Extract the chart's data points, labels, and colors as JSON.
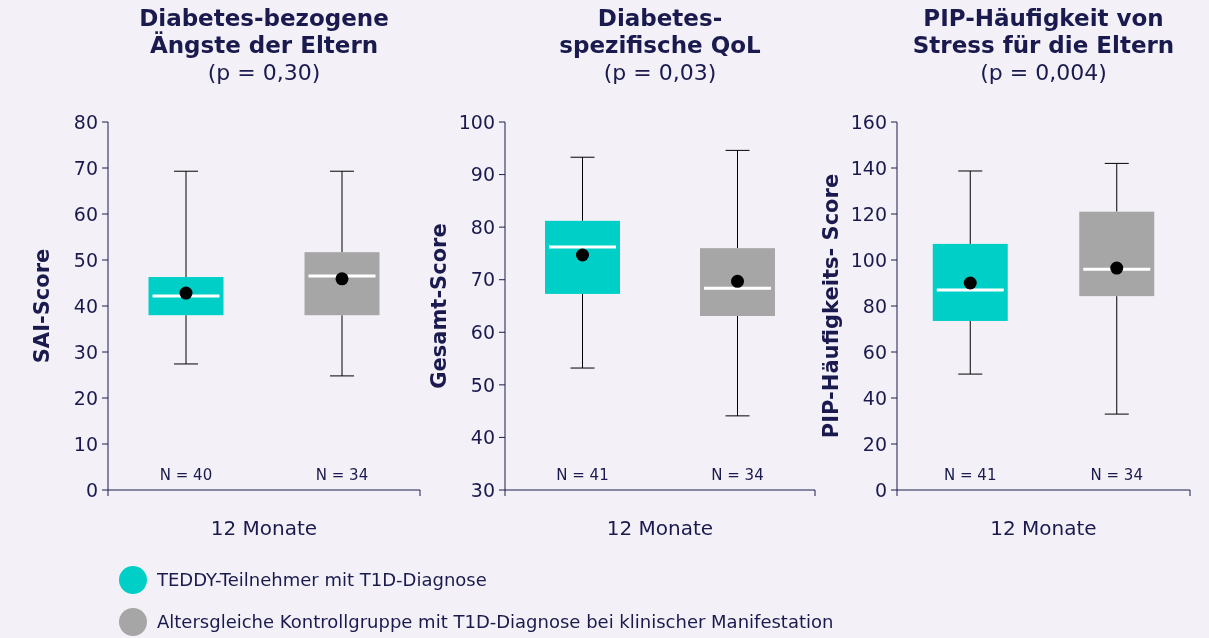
{
  "chart_data": [
    {
      "type": "box",
      "title": "Diabetes-bezogene\nÄngste der Eltern",
      "subtitle": "(p = 0,30)",
      "ylabel": "SAI-Score",
      "xlabel": "12 Monate",
      "categories": [
        null,
        null
      ],
      "ylim": [
        0,
        80
      ],
      "yticks": [
        0,
        10,
        20,
        30,
        40,
        50,
        60,
        70,
        80
      ],
      "legend": "bottom",
      "annotations": [
        "N = 40",
        "N = 34"
      ],
      "series": [
        {
          "name": "TEDDY-Teilnehmer mit T1D-Diagnose",
          "color": "#00cfc8",
          "boxes": [
            {
              "low": 27.4,
              "q1": 38,
              "median": 42.2,
              "q3": 46.3,
              "high": 69.3,
              "mean": 42.8
            },
            null
          ]
        },
        {
          "name": "Altersgleiche Kontrollgruppe mit T1D-Diagnose bei klinischer Manifestation",
          "color": "#a6a6a6",
          "boxes": [
            null,
            {
              "low": 24.8,
              "q1": 38,
              "median": 46.5,
              "q3": 51.7,
              "high": 69.3,
              "mean": 45.9
            }
          ]
        }
      ]
    },
    {
      "type": "box",
      "title": "Diabetes-\nspezifische QoL",
      "subtitle": "(p = 0,03)",
      "ylabel": "Gesamt-Score",
      "xlabel": "12 Monate",
      "categories": [
        null,
        null
      ],
      "ylim": [
        30,
        100
      ],
      "yticks": [
        30,
        40,
        50,
        60,
        70,
        80,
        90,
        100
      ],
      "annotations": [
        "N = 41",
        "N = 34"
      ],
      "series": [
        {
          "color": "#00cfc8",
          "boxes": [
            {
              "low": 53.2,
              "q1": 67.3,
              "median": 76.2,
              "q3": 81.2,
              "high": 93.3,
              "mean": 74.7
            },
            null
          ]
        },
        {
          "color": "#a6a6a6",
          "boxes": [
            null,
            {
              "low": 44.1,
              "q1": 63.1,
              "median": 68.4,
              "q3": 76,
              "high": 94.6,
              "mean": 69.7
            }
          ]
        }
      ]
    },
    {
      "type": "box",
      "title": "PIP-Häufigkeit von\nStress für die Eltern",
      "subtitle": "(p = 0,004)",
      "ylabel": "PIP-Häufigkeits- Score",
      "xlabel": "12 Monate",
      "categories": [
        null,
        null
      ],
      "ylim": [
        0,
        160
      ],
      "yticks": [
        0,
        20,
        40,
        60,
        80,
        100,
        120,
        140,
        160
      ],
      "annotations": [
        "N = 41",
        "N = 34"
      ],
      "series": [
        {
          "color": "#00cfc8",
          "boxes": [
            {
              "low": 50.4,
              "q1": 73.5,
              "median": 87,
              "q3": 107,
              "high": 138.7,
              "mean": 90
            },
            null
          ]
        },
        {
          "color": "#a6a6a6",
          "boxes": [
            null,
            {
              "low": 33,
              "q1": 84.3,
              "median": 96,
              "q3": 121,
              "high": 142,
              "mean": 96.5
            }
          ]
        }
      ]
    }
  ]
}
